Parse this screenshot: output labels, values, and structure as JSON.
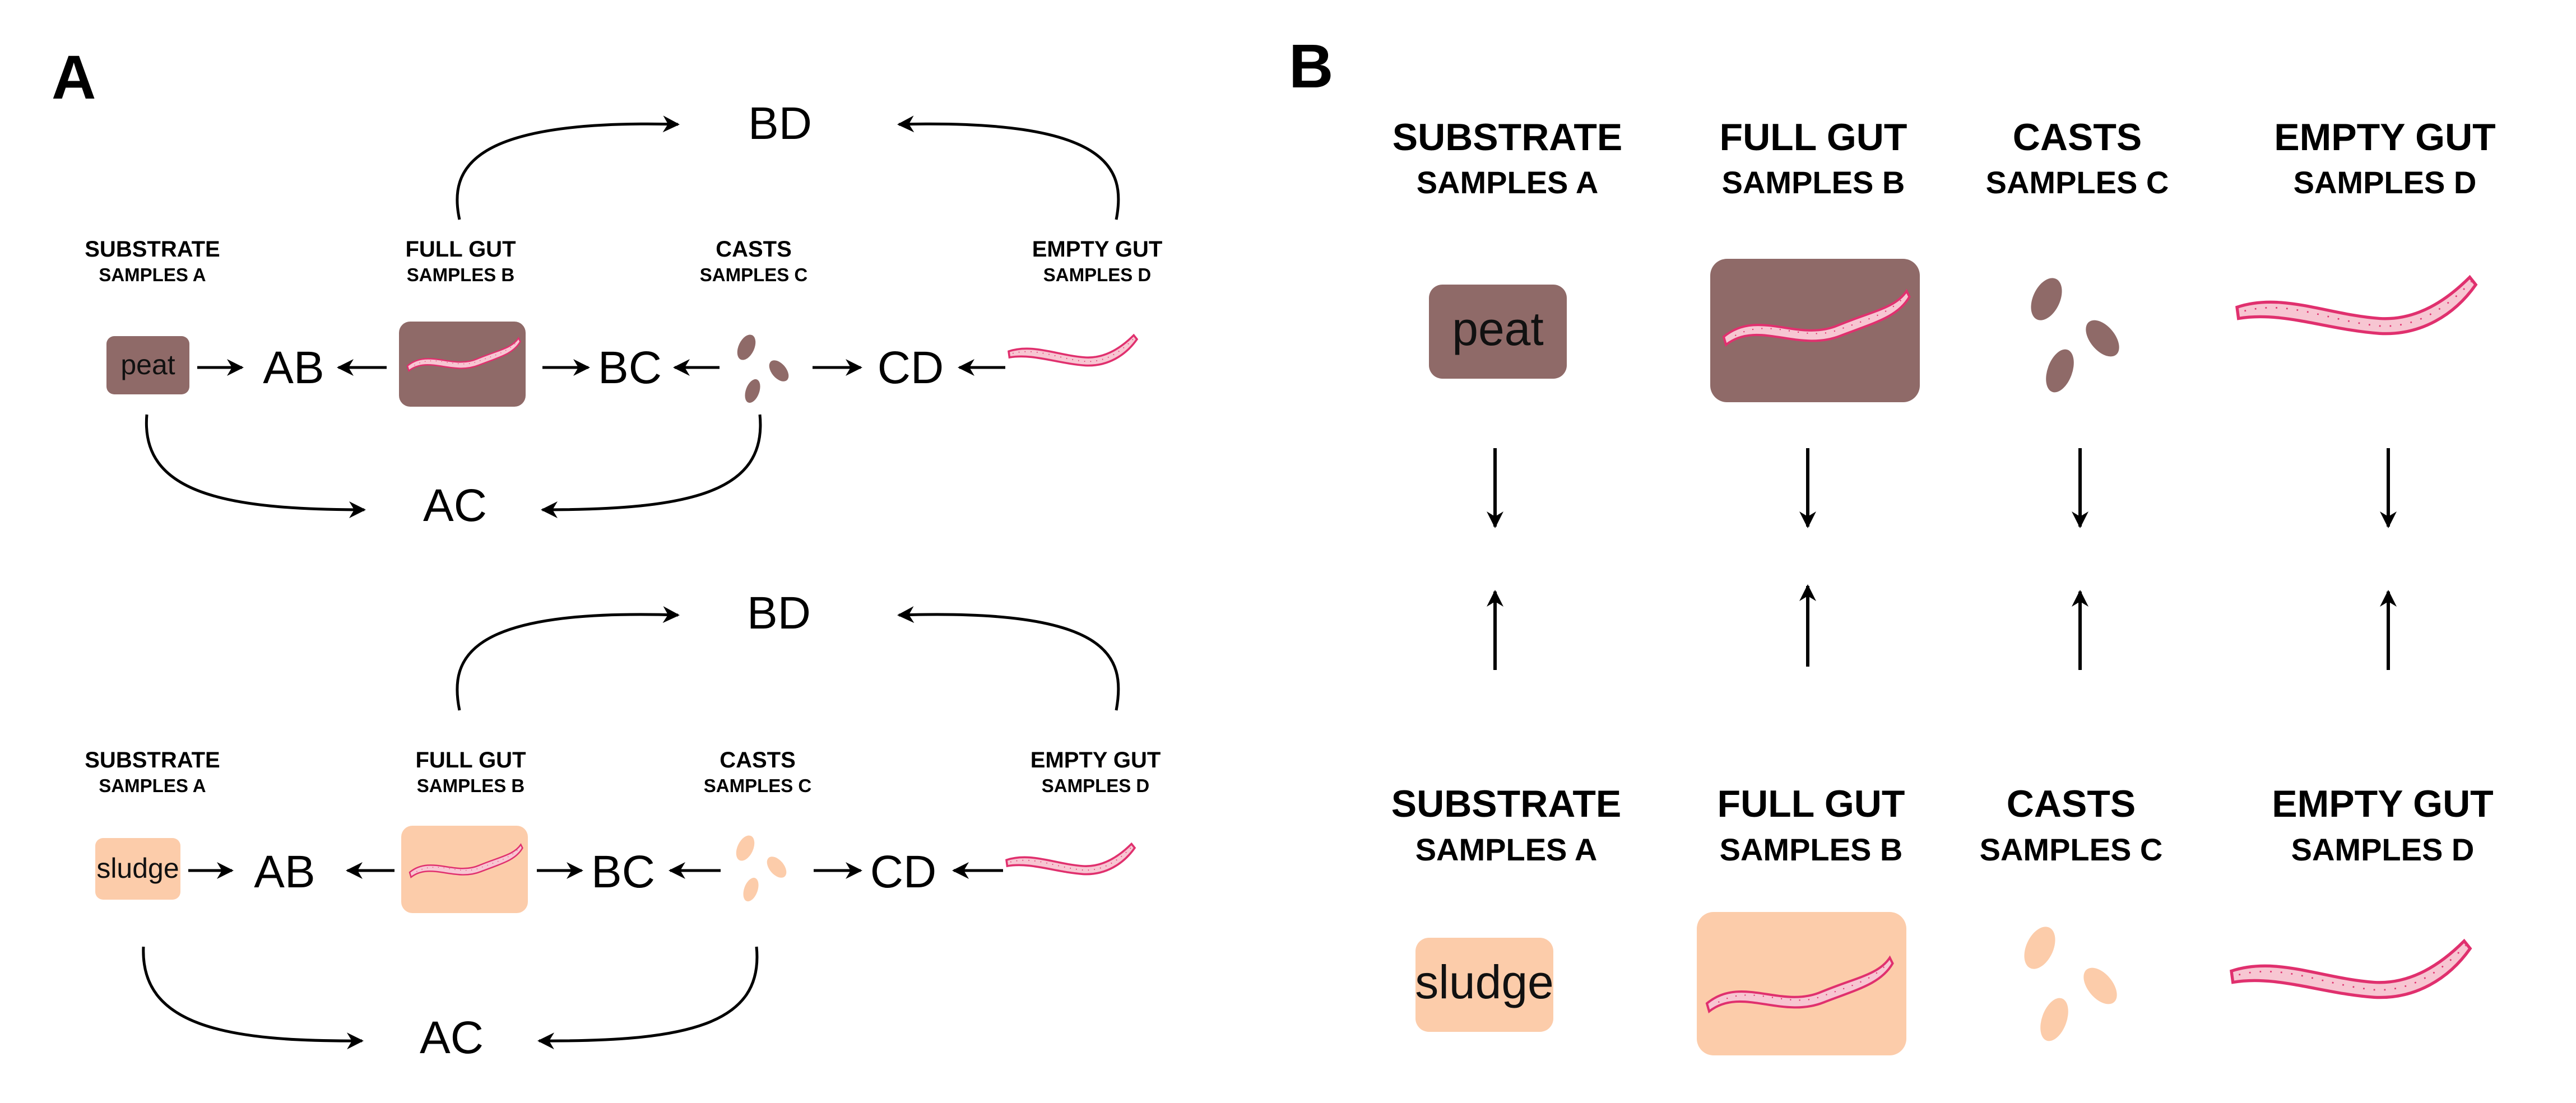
{
  "panel_a": {
    "letter": "A",
    "headers": {
      "substrate": [
        "SUBSTRATE",
        "SAMPLES A"
      ],
      "full_gut": [
        "FULL GUT",
        "SAMPLES B"
      ],
      "casts": [
        "CASTS",
        "SAMPLES C"
      ],
      "empty_gut": [
        "EMPTY GUT",
        "SAMPLES D"
      ]
    },
    "nodes": {
      "ab": "AB",
      "bc": "BC",
      "cd": "CD",
      "bd": "BD",
      "ac": "AC"
    },
    "rows": [
      {
        "substrate_label": "peat"
      },
      {
        "substrate_label": "sludge"
      }
    ]
  },
  "panel_b": {
    "letter": "B",
    "headers": {
      "substrate": [
        "SUBSTRATE",
        "SAMPLES A"
      ],
      "full_gut": [
        "FULL GUT",
        "SAMPLES B"
      ],
      "casts": [
        "CASTS",
        "SAMPLES C"
      ],
      "empty_gut": [
        "EMPTY GUT",
        "SAMPLES D"
      ]
    },
    "rows": [
      {
        "substrate_label": "peat"
      },
      {
        "substrate_label": "sludge"
      }
    ]
  },
  "colors": {
    "peat": "#8f6a68",
    "sludge": "#fcccaa",
    "worm_fill": "#f7c6d2",
    "worm_stroke": "#e0306e",
    "arrow": "#000000"
  }
}
